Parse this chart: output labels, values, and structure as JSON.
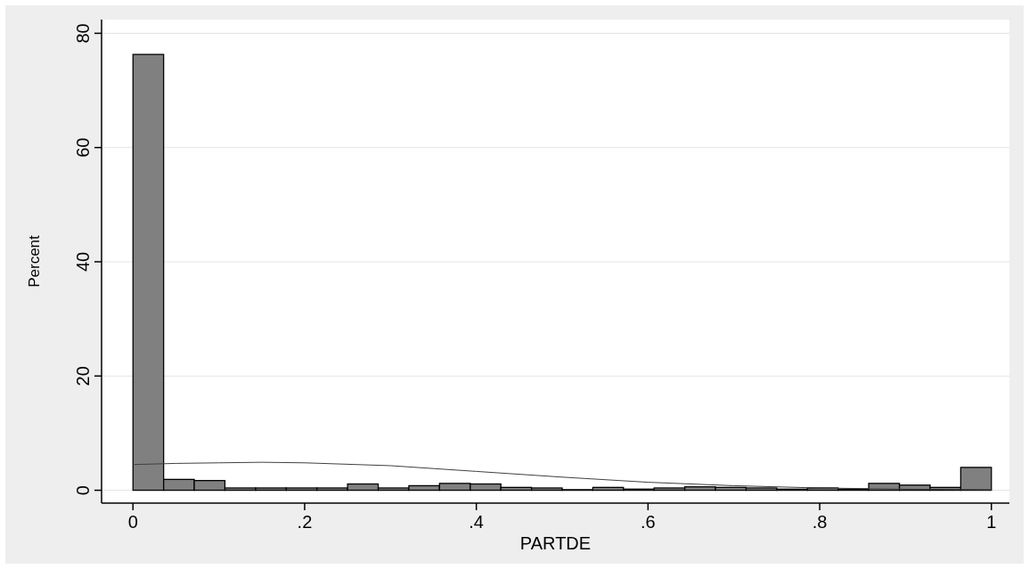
{
  "chart_data": {
    "type": "histogram",
    "xlabel": "PARTDE",
    "ylabel": "Percent",
    "bins": [
      0,
      0.0357,
      0.0714,
      0.1071,
      0.1429,
      0.1786,
      0.2143,
      0.25,
      0.2857,
      0.3214,
      0.3571,
      0.3929,
      0.4286,
      0.4643,
      0.5,
      0.5357,
      0.5714,
      0.6071,
      0.6429,
      0.6786,
      0.7143,
      0.75,
      0.7857,
      0.8214,
      0.8571,
      0.8929,
      0.9286,
      0.9643,
      1
    ],
    "values": [
      76.3,
      1.9,
      1.7,
      0.4,
      0.4,
      0.4,
      0.4,
      1.1,
      0.4,
      0.8,
      1.2,
      1.1,
      0.5,
      0.4,
      0.1,
      0.5,
      0.2,
      0.4,
      0.6,
      0.5,
      0.4,
      0.2,
      0.4,
      0.2,
      1.2,
      0.9,
      0.5,
      4.0
    ],
    "color": "#808080",
    "series": [
      {
        "type": "line",
        "color": "#404040",
        "x": [
          0,
          0.05,
          0.1,
          0.15,
          0.2,
          0.3,
          0.4,
          0.5,
          0.6,
          0.7,
          0.8,
          0.9,
          1
        ],
        "values": [
          4.5,
          4.7,
          4.8,
          4.9,
          4.8,
          4.3,
          3.3,
          2.3,
          1.4,
          0.8,
          0.4,
          0.2,
          0.1
        ]
      }
    ],
    "xlim": [
      -0.0366,
      1.021
    ],
    "ylim": [
      -2.25,
      82.4
    ],
    "xticks": [
      0,
      {
        "value": 0.2,
        "label": ".2"
      },
      {
        "value": 0.4,
        "label": ".4"
      },
      {
        "value": 0.6,
        "label": ".6"
      },
      {
        "value": 0.8,
        "label": ".8"
      },
      1
    ],
    "yticks": [
      0,
      20,
      40,
      60,
      80
    ],
    "grid": "y"
  }
}
